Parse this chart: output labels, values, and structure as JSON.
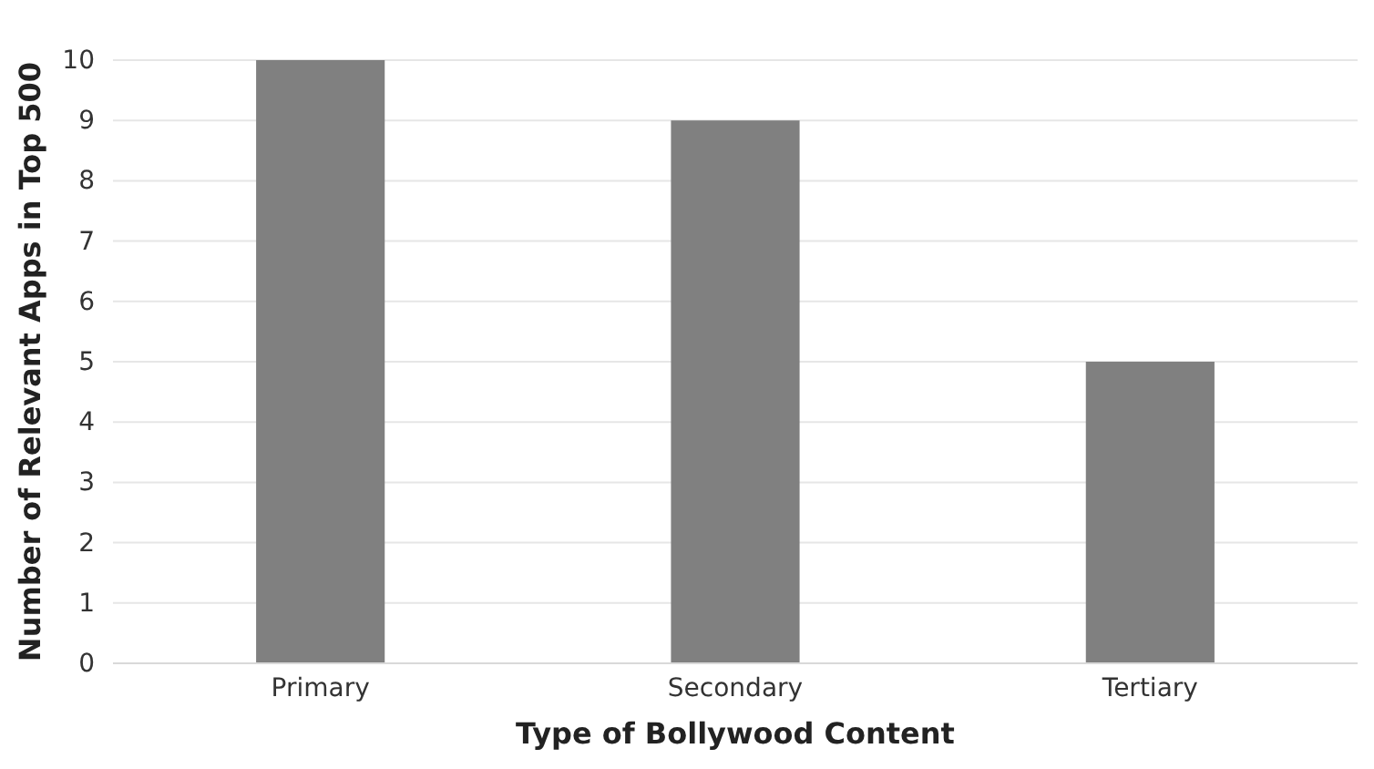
{
  "chart_data": {
    "type": "bar",
    "xlabel": "Type of Bollywood Content",
    "ylabel": "Number of Relevant Apps in Top 500",
    "categories": [
      "Primary",
      "Secondary",
      "Tertiary"
    ],
    "values": [
      10,
      9,
      5
    ],
    "color": "#808080",
    "ylim": [
      0,
      10
    ],
    "yticks": [
      0,
      1,
      2,
      3,
      4,
      5,
      6,
      7,
      8,
      9,
      10
    ],
    "grid": "y"
  }
}
